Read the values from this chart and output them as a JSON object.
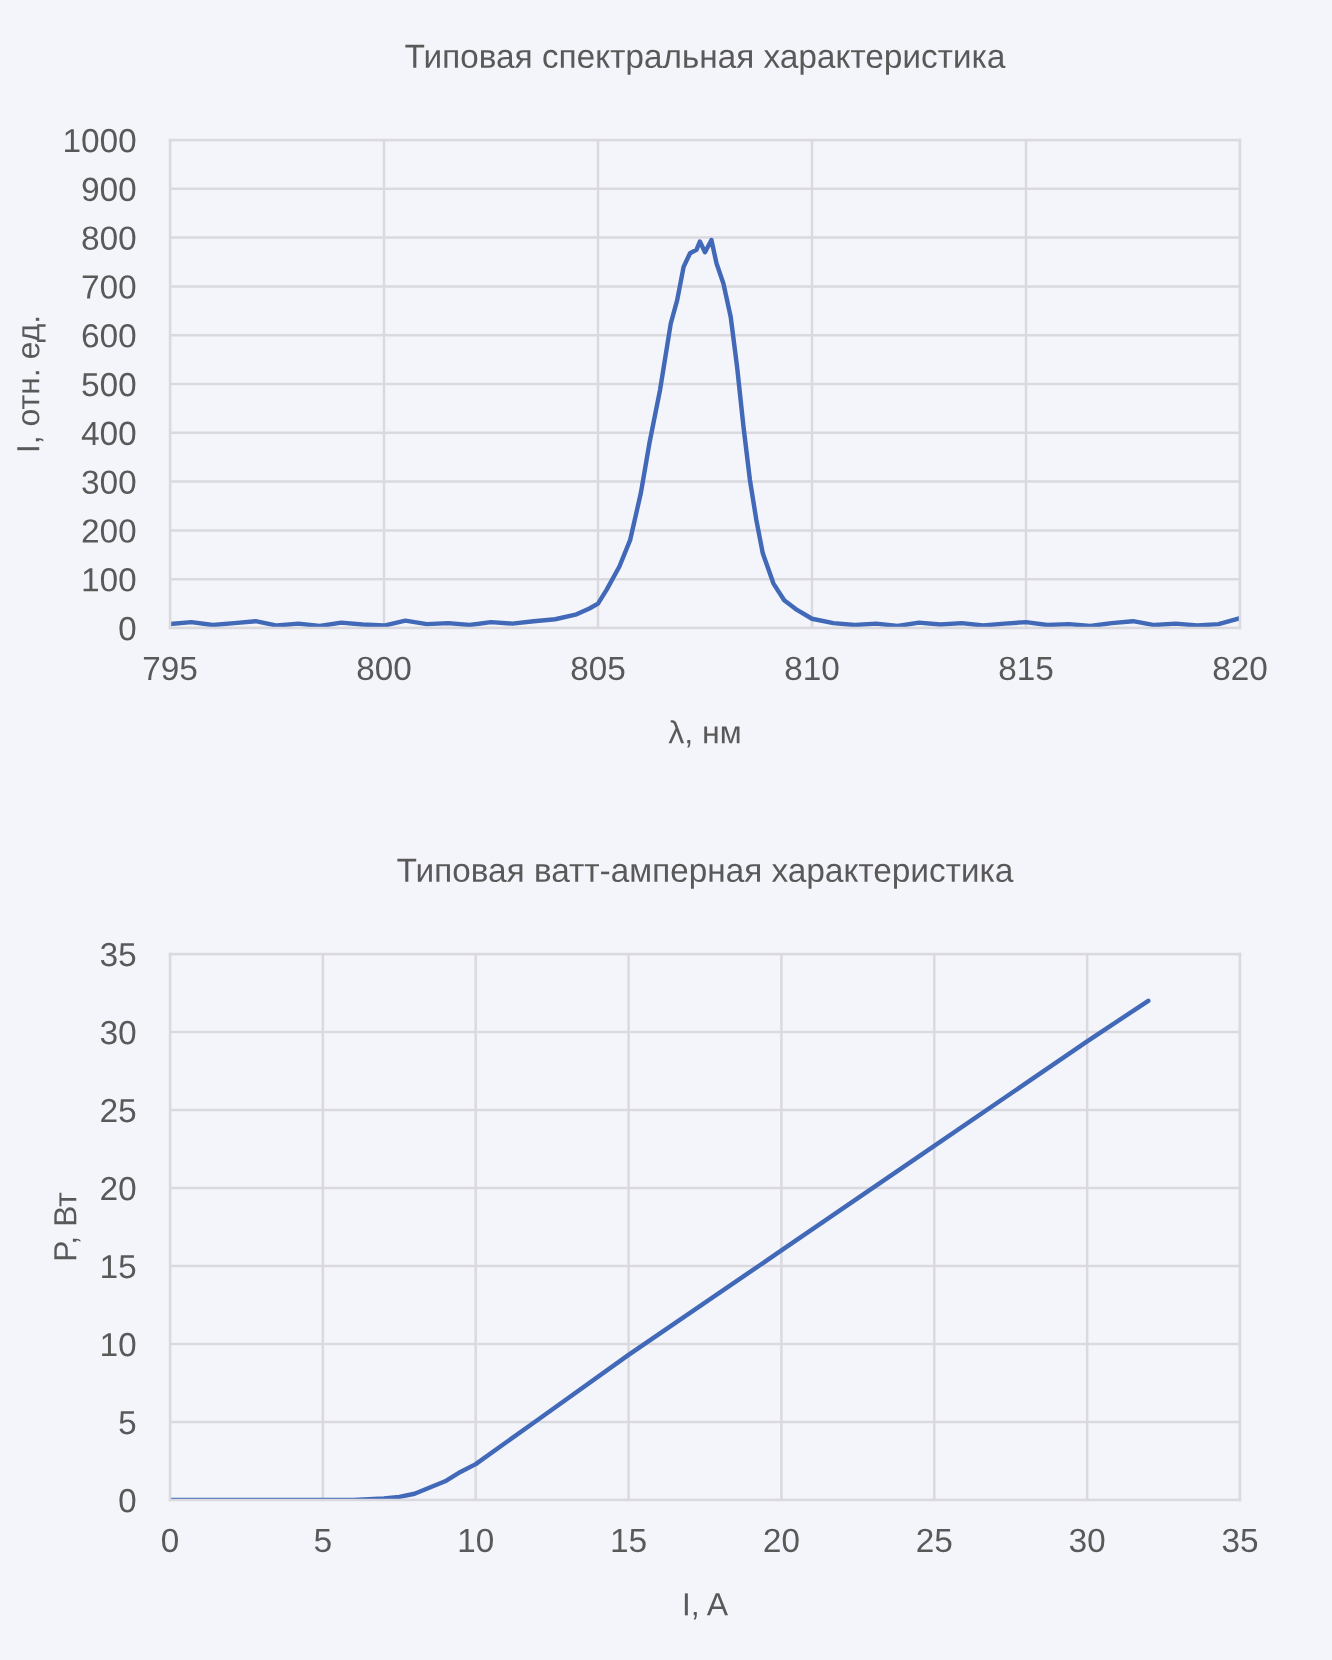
{
  "chart_data": [
    {
      "type": "line",
      "title": "Типовая спектральная характеристика",
      "xlabel": "λ, нм",
      "ylabel": "I, отн. ед.",
      "x": [
        795.0,
        795.5,
        796.0,
        796.5,
        797.0,
        797.5,
        798.0,
        798.5,
        799.0,
        799.5,
        800.0,
        800.5,
        801.0,
        801.5,
        802.0,
        802.5,
        803.0,
        803.5,
        804.0,
        804.5,
        804.8,
        805.0,
        805.2,
        805.5,
        805.75,
        806.0,
        806.2,
        806.45,
        806.7,
        806.85,
        807.0,
        807.15,
        807.3,
        807.38,
        807.5,
        807.65,
        807.77,
        807.93,
        808.1,
        808.25,
        808.4,
        808.55,
        808.7,
        808.85,
        809.1,
        809.35,
        809.65,
        810.0,
        810.5,
        811.0,
        811.5,
        812.0,
        812.5,
        813.0,
        813.5,
        814.0,
        814.5,
        815.0,
        815.5,
        816.0,
        816.5,
        817.0,
        817.5,
        818.0,
        818.5,
        819.0,
        819.5,
        820.0
      ],
      "series": [
        {
          "color": "#4169b8",
          "values": [
            8,
            12,
            6,
            10,
            14,
            5,
            9,
            4,
            11,
            7,
            5,
            15,
            8,
            10,
            6,
            12,
            9,
            14,
            18,
            28,
            40,
            50,
            78,
            126,
            180,
            276,
            378,
            488,
            624,
            672,
            740,
            768,
            775,
            792,
            770,
            795,
            747,
            706,
            638,
            535,
            412,
            303,
            221,
            153,
            91,
            57,
            37,
            19,
            10,
            6,
            9,
            4,
            11,
            7,
            10,
            5,
            9,
            12,
            6,
            8,
            4,
            10,
            14,
            6,
            9,
            5,
            8,
            20
          ]
        }
      ],
      "xlim": [
        795,
        820
      ],
      "xticks": [
        795,
        800,
        805,
        810,
        815,
        820
      ],
      "ylim": [
        0,
        1000
      ],
      "yticks": [
        0,
        100,
        200,
        300,
        400,
        500,
        600,
        700,
        800,
        900,
        1000
      ],
      "grid": true,
      "line_style": "solid"
    },
    {
      "type": "line",
      "title": "Типовая ватт-амперная характеристика",
      "xlabel": "I, A",
      "ylabel": "P, Вт",
      "x": [
        0,
        5,
        6,
        7,
        7.5,
        8,
        8.5,
        9,
        9.5,
        10,
        11,
        12,
        15,
        20,
        25,
        30,
        32
      ],
      "series": [
        {
          "color": "#4169b8",
          "values": [
            0,
            0,
            0,
            0.1,
            0.2,
            0.4,
            0.8,
            1.2,
            1.8,
            2.3,
            3.7,
            5.1,
            9.3,
            16.0,
            22.7,
            29.4,
            32.0
          ]
        }
      ],
      "xlim": [
        0,
        35
      ],
      "xticks": [
        0,
        5,
        10,
        15,
        20,
        25,
        30,
        35
      ],
      "ylim": [
        0,
        35
      ],
      "yticks": [
        0,
        5,
        10,
        15,
        20,
        25,
        30,
        35
      ],
      "grid": true,
      "line_style": "solid"
    }
  ]
}
